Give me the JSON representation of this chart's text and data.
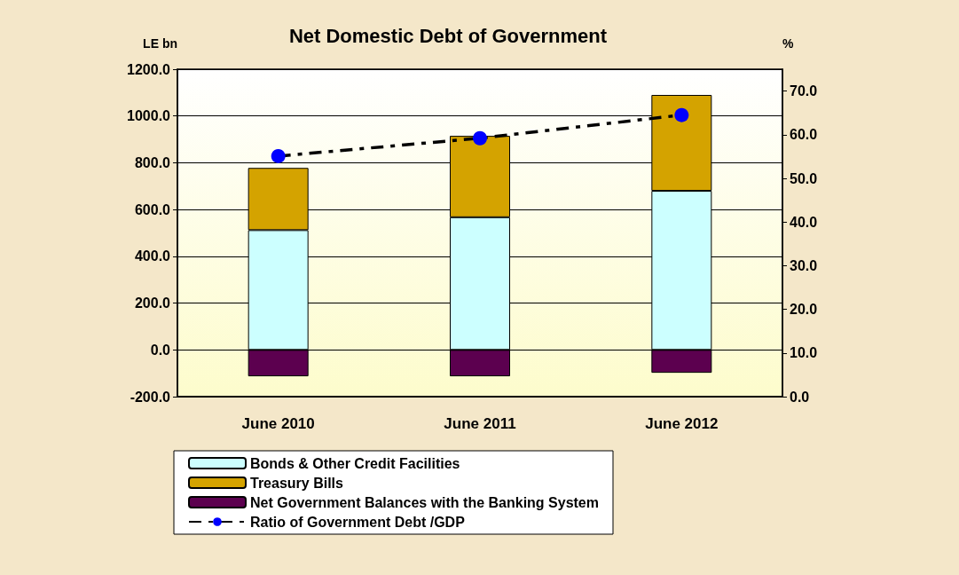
{
  "chart_data": {
    "type": "bar",
    "title": "Net Domestic Debt of Government",
    "ylabel": "LE bn",
    "y2label": "%",
    "categories": [
      "June 2010",
      "June 2011",
      "June 2012"
    ],
    "stacked": true,
    "series": [
      {
        "name": "Bonds & Other Credit Facilities",
        "color": "#ccffff",
        "values": [
          512,
          567,
          680
        ]
      },
      {
        "name": "Treasury Bills",
        "color": "#d4a300",
        "values": [
          266,
          348,
          410
        ]
      },
      {
        "name": "Net Government Balances with the Banking System",
        "color": "#5c004f",
        "values": [
          -113,
          -113,
          -98
        ]
      },
      {
        "name": "Ratio of Government Debt /GDP",
        "type": "line",
        "axis": "y2",
        "color": "#0000ff",
        "marker": "circle",
        "line_style": "dashed",
        "values": [
          55.1,
          59.2,
          64.5
        ]
      }
    ],
    "ylim": [
      -200,
      1200
    ],
    "yticks": [
      {
        "value": -200,
        "label": "-200.0"
      },
      {
        "value": 0,
        "label": "0.0"
      },
      {
        "value": 200,
        "label": "200.0"
      },
      {
        "value": 400,
        "label": "400.0"
      },
      {
        "value": 600,
        "label": "600.0"
      },
      {
        "value": 800,
        "label": "800.0"
      },
      {
        "value": 1000,
        "label": "1000.0"
      },
      {
        "value": 1200,
        "label": "1200.0"
      }
    ],
    "y2lim": [
      0,
      75
    ],
    "y2ticks": [
      {
        "value": 0,
        "label": "0.0"
      },
      {
        "value": 10,
        "label": "10.0"
      },
      {
        "value": 20,
        "label": "20.0"
      },
      {
        "value": 30,
        "label": "30.0"
      },
      {
        "value": 40,
        "label": "40.0"
      },
      {
        "value": 50,
        "label": "50.0"
      },
      {
        "value": 60,
        "label": "60.0"
      },
      {
        "value": 70,
        "label": "70.0"
      }
    ],
    "grid": "y",
    "legend": "bottom"
  }
}
